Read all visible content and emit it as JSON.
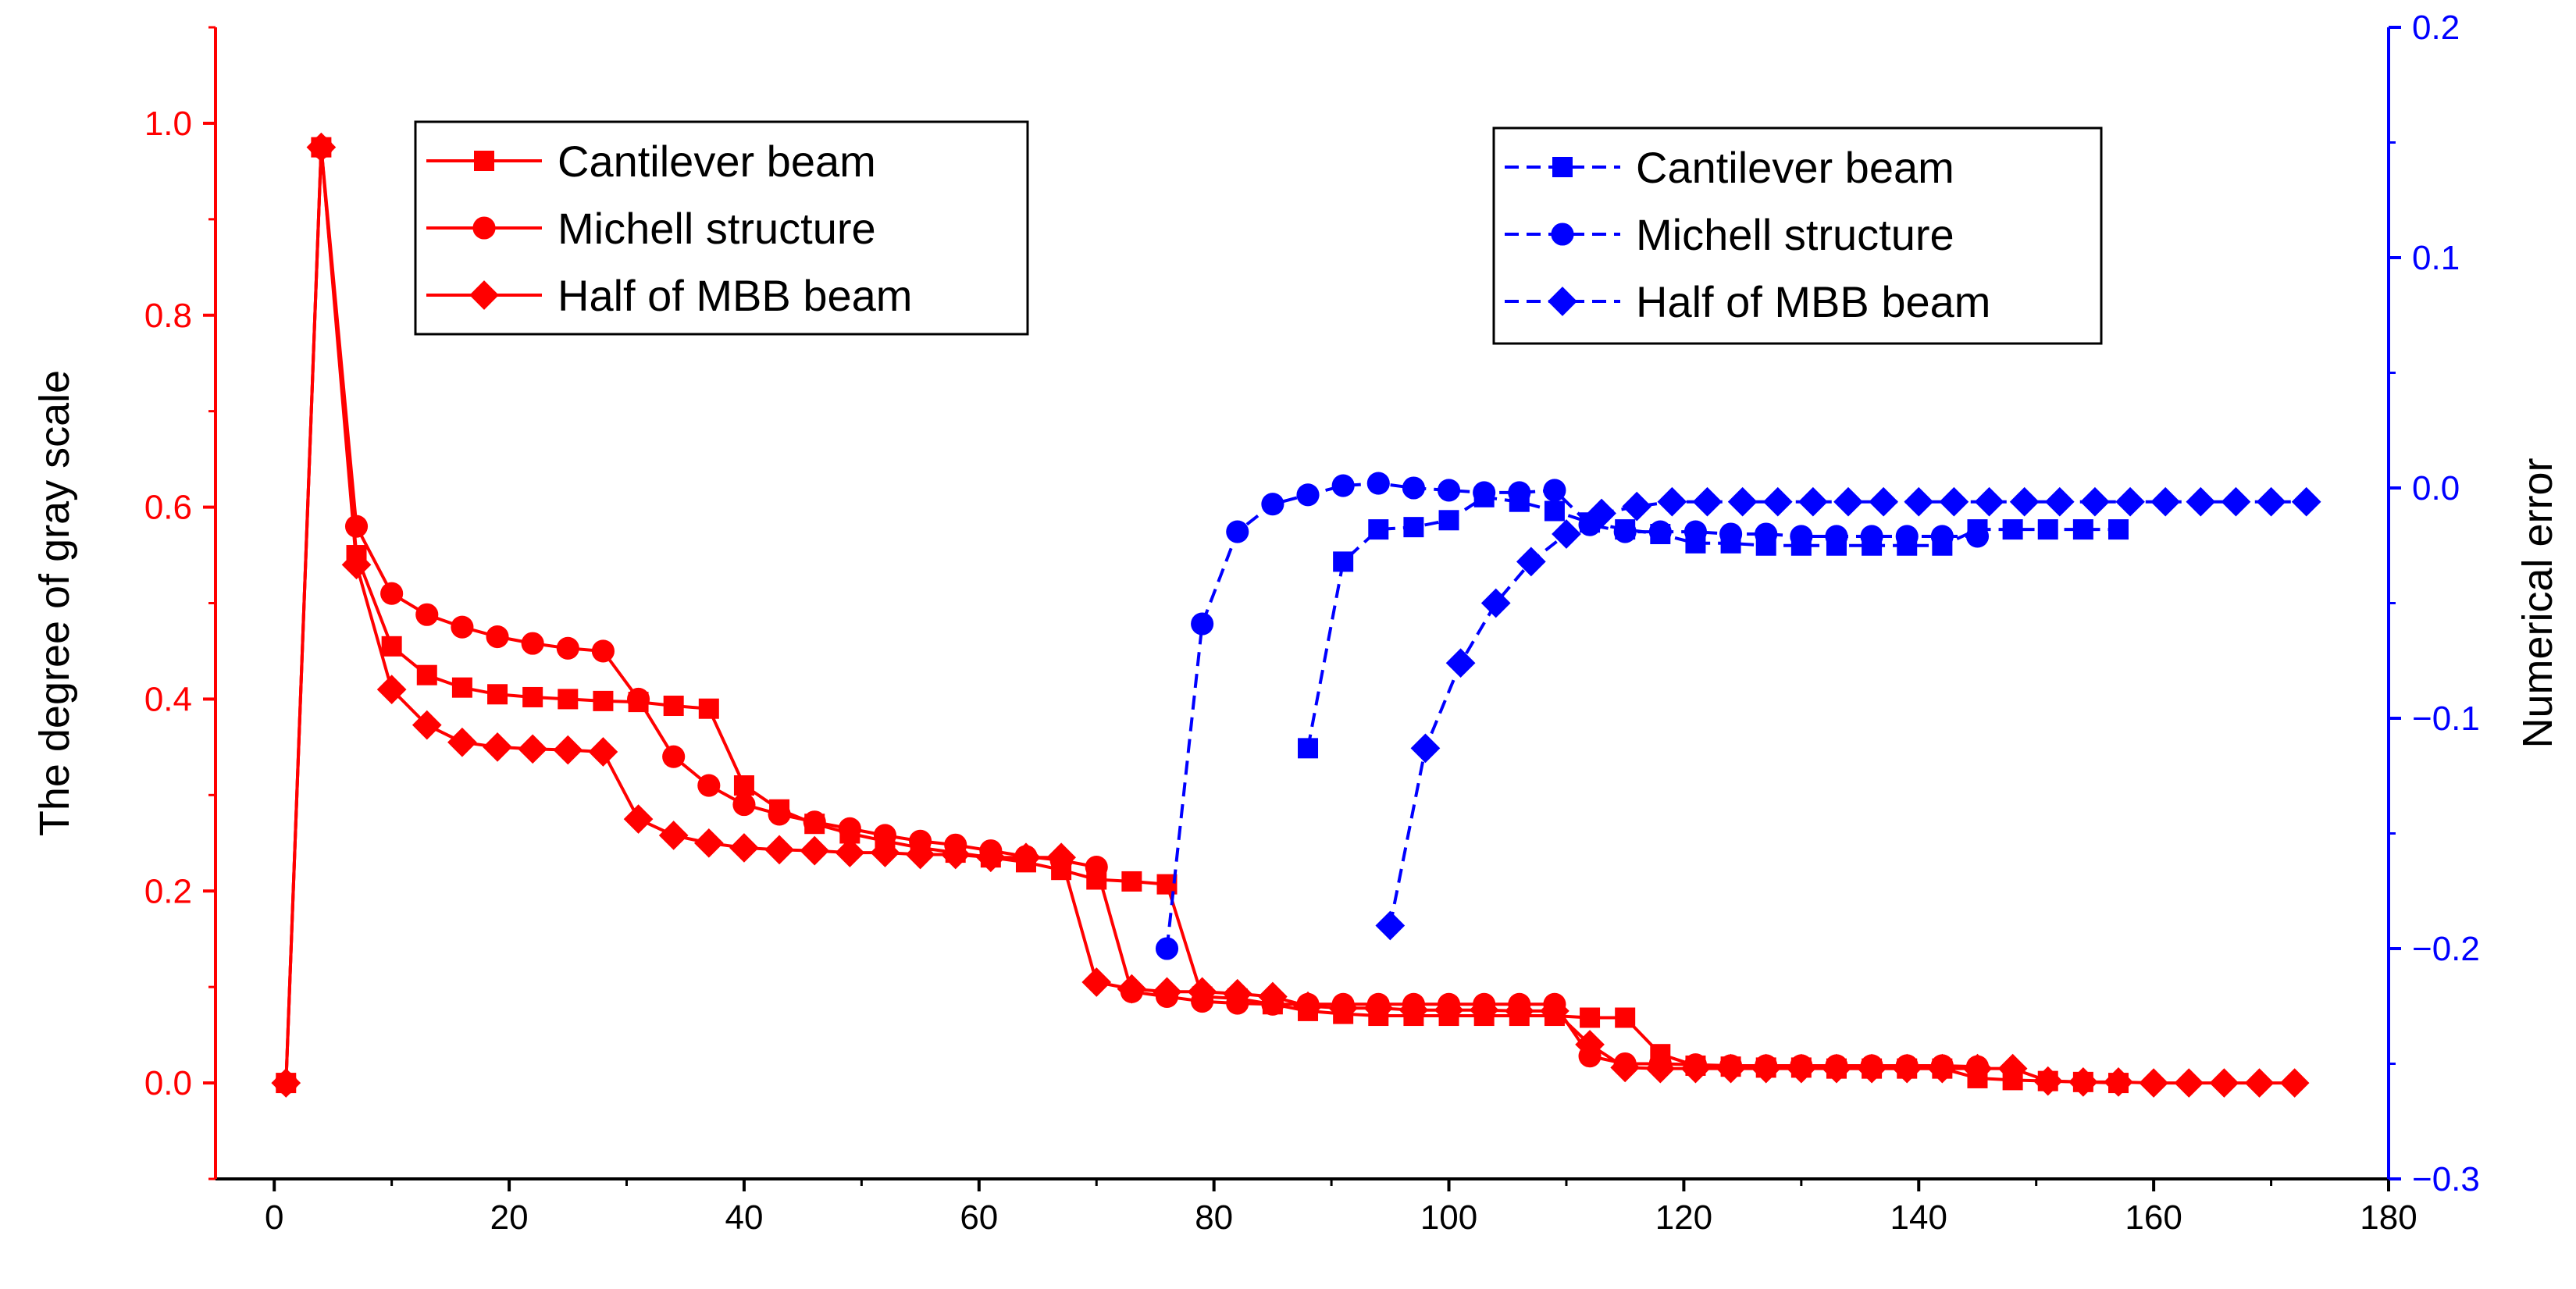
{
  "chart_data": {
    "type": "line",
    "title": "",
    "xlabel": "",
    "xlim": [
      -5,
      180
    ],
    "xticks": [
      0,
      20,
      40,
      60,
      80,
      100,
      120,
      140,
      160,
      180
    ],
    "left_axis": {
      "label": "The degree of gray scale",
      "color": "#ff0000",
      "ylim": [
        -0.1,
        1.1
      ],
      "ticks": [
        0.0,
        0.2,
        0.4,
        0.6,
        0.8,
        1.0
      ],
      "tick_labels": [
        "0.0",
        "0.2",
        "0.4",
        "0.6",
        "0.8",
        "1.0"
      ]
    },
    "right_axis": {
      "label": "Numerical error",
      "color": "#0000ff",
      "ylim": [
        -0.3,
        0.2
      ],
      "ticks": [
        -0.3,
        -0.2,
        -0.1,
        0.0,
        0.1,
        0.2
      ],
      "tick_labels": [
        "−0.3",
        "−0.2",
        "−0.1",
        "0.0",
        "0.1",
        "0.2"
      ]
    },
    "legend_left": {
      "placement": "top-left",
      "entries": [
        "Cantilever beam",
        "Michell structure",
        "Half of MBB beam"
      ]
    },
    "legend_right": {
      "placement": "top-right",
      "entries": [
        "Cantilever beam",
        "Michell structure",
        "Half of MBB beam"
      ]
    },
    "series": [
      {
        "name": "Cantilever beam",
        "axis": "left",
        "color": "#ff0000",
        "marker": "square",
        "line": "solid",
        "x": [
          1,
          4,
          7,
          10,
          13,
          16,
          19,
          22,
          25,
          28,
          31,
          34,
          37,
          40,
          43,
          46,
          49,
          52,
          55,
          58,
          61,
          64,
          67,
          70,
          73,
          76,
          79,
          82,
          85,
          88,
          91,
          94,
          97,
          100,
          103,
          106,
          109,
          112,
          115,
          118,
          121,
          124,
          127,
          130,
          133,
          136,
          139,
          142,
          145,
          148,
          151,
          154,
          157
        ],
        "y": [
          0.0,
          0.975,
          0.55,
          0.455,
          0.425,
          0.412,
          0.405,
          0.402,
          0.4,
          0.398,
          0.397,
          0.393,
          0.39,
          0.31,
          0.285,
          0.27,
          0.26,
          0.252,
          0.245,
          0.24,
          0.235,
          0.23,
          0.222,
          0.212,
          0.21,
          0.207,
          0.09,
          0.088,
          0.082,
          0.075,
          0.072,
          0.07,
          0.07,
          0.07,
          0.07,
          0.07,
          0.07,
          0.068,
          0.068,
          0.03,
          0.018,
          0.017,
          0.016,
          0.016,
          0.015,
          0.015,
          0.015,
          0.015,
          0.005,
          0.003,
          0.002,
          0.001,
          0.0
        ]
      },
      {
        "name": "Michell structure",
        "axis": "left",
        "color": "#ff0000",
        "marker": "circle",
        "line": "solid",
        "x": [
          1,
          4,
          7,
          10,
          13,
          16,
          19,
          22,
          25,
          28,
          31,
          34,
          37,
          40,
          43,
          46,
          49,
          52,
          55,
          58,
          61,
          64,
          67,
          70,
          73,
          76,
          79,
          82,
          85,
          88,
          91,
          94,
          97,
          100,
          103,
          106,
          109,
          112,
          115,
          118,
          121,
          124,
          127,
          130,
          133,
          136,
          139,
          142,
          145
        ],
        "y": [
          0.0,
          0.975,
          0.58,
          0.51,
          0.488,
          0.475,
          0.465,
          0.458,
          0.453,
          0.45,
          0.4,
          0.34,
          0.31,
          0.29,
          0.28,
          0.272,
          0.265,
          0.258,
          0.252,
          0.248,
          0.242,
          0.236,
          0.232,
          0.225,
          0.095,
          0.09,
          0.085,
          0.083,
          0.082,
          0.082,
          0.082,
          0.082,
          0.082,
          0.082,
          0.082,
          0.082,
          0.082,
          0.028,
          0.02,
          0.02,
          0.019,
          0.018,
          0.018,
          0.018,
          0.018,
          0.018,
          0.018,
          0.018,
          0.017
        ]
      },
      {
        "name": "Half of MBB beam",
        "axis": "left",
        "color": "#ff0000",
        "marker": "diamond",
        "line": "solid",
        "x": [
          1,
          4,
          7,
          10,
          13,
          16,
          19,
          22,
          25,
          28,
          31,
          34,
          37,
          40,
          43,
          46,
          49,
          52,
          55,
          58,
          61,
          64,
          67,
          70,
          73,
          76,
          79,
          82,
          85,
          88,
          91,
          94,
          97,
          100,
          103,
          106,
          109,
          112,
          115,
          118,
          121,
          124,
          127,
          130,
          133,
          136,
          139,
          142,
          145,
          148,
          151,
          154,
          157,
          160,
          163,
          166,
          169,
          172
        ],
        "y": [
          0.0,
          0.975,
          0.54,
          0.41,
          0.373,
          0.355,
          0.35,
          0.348,
          0.347,
          0.345,
          0.275,
          0.258,
          0.25,
          0.245,
          0.243,
          0.242,
          0.24,
          0.24,
          0.238,
          0.238,
          0.235,
          0.235,
          0.235,
          0.105,
          0.098,
          0.095,
          0.095,
          0.093,
          0.09,
          0.08,
          0.078,
          0.078,
          0.076,
          0.076,
          0.076,
          0.075,
          0.075,
          0.04,
          0.016,
          0.015,
          0.015,
          0.015,
          0.015,
          0.015,
          0.015,
          0.015,
          0.015,
          0.015,
          0.015,
          0.015,
          0.002,
          0.001,
          0.001,
          0.0,
          0.0,
          0.0,
          0.0,
          0.0
        ]
      },
      {
        "name": "Cantilever beam",
        "axis": "right",
        "color": "#0000ff",
        "marker": "square",
        "line": "dashed",
        "x": [
          88,
          91,
          94,
          97,
          100,
          103,
          106,
          109,
          112,
          115,
          118,
          121,
          124,
          127,
          130,
          133,
          136,
          139,
          142,
          145,
          148,
          151,
          154,
          157
        ],
        "y": [
          -0.113,
          -0.032,
          -0.018,
          -0.017,
          -0.014,
          -0.004,
          -0.006,
          -0.01,
          -0.015,
          -0.018,
          -0.02,
          -0.024,
          -0.024,
          -0.025,
          -0.025,
          -0.025,
          -0.025,
          -0.025,
          -0.025,
          -0.018,
          -0.018,
          -0.018,
          -0.018,
          -0.018
        ]
      },
      {
        "name": "Michell structure",
        "axis": "right",
        "color": "#0000ff",
        "marker": "circle",
        "line": "dashed",
        "x": [
          76,
          79,
          82,
          85,
          88,
          91,
          94,
          97,
          100,
          103,
          106,
          109,
          112,
          115,
          118,
          121,
          124,
          127,
          130,
          133,
          136,
          139,
          142,
          145
        ],
        "y": [
          -0.2,
          -0.059,
          -0.019,
          -0.007,
          -0.003,
          0.001,
          0.002,
          0.0,
          -0.001,
          -0.002,
          -0.002,
          -0.001,
          -0.016,
          -0.019,
          -0.019,
          -0.019,
          -0.02,
          -0.02,
          -0.021,
          -0.021,
          -0.021,
          -0.021,
          -0.021,
          -0.021
        ]
      },
      {
        "name": "Half of MBB beam",
        "axis": "right",
        "color": "#0000ff",
        "marker": "diamond",
        "line": "dashed",
        "x": [
          95,
          98,
          101,
          104,
          107,
          110,
          113,
          116,
          119,
          122,
          125,
          128,
          131,
          134,
          137,
          140,
          143,
          146,
          149,
          152,
          155,
          158,
          161,
          164,
          167,
          170,
          173
        ],
        "y": [
          -0.19,
          -0.113,
          -0.076,
          -0.05,
          -0.032,
          -0.02,
          -0.011,
          -0.008,
          -0.006,
          -0.006,
          -0.006,
          -0.006,
          -0.006,
          -0.006,
          -0.006,
          -0.006,
          -0.006,
          -0.006,
          -0.006,
          -0.006,
          -0.006,
          -0.006,
          -0.006,
          -0.006,
          -0.006,
          -0.006,
          -0.006
        ]
      }
    ]
  }
}
